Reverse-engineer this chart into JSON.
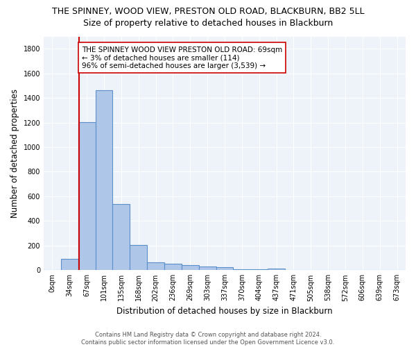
{
  "title": "THE SPINNEY, WOOD VIEW, PRESTON OLD ROAD, BLACKBURN, BB2 5LL",
  "subtitle": "Size of property relative to detached houses in Blackburn",
  "xlabel": "Distribution of detached houses by size in Blackburn",
  "ylabel": "Number of detached properties",
  "footer_line1": "Contains HM Land Registry data © Crown copyright and database right 2024.",
  "footer_line2": "Contains public sector information licensed under the Open Government Licence v3.0.",
  "bin_labels": [
    "0sqm",
    "34sqm",
    "67sqm",
    "101sqm",
    "135sqm",
    "168sqm",
    "202sqm",
    "236sqm",
    "269sqm",
    "303sqm",
    "337sqm",
    "370sqm",
    "404sqm",
    "437sqm",
    "471sqm",
    "505sqm",
    "538sqm",
    "572sqm",
    "606sqm",
    "639sqm",
    "673sqm"
  ],
  "bar_values": [
    0,
    90,
    1205,
    1460,
    540,
    205,
    65,
    50,
    40,
    28,
    25,
    10,
    10,
    15,
    0,
    0,
    0,
    0,
    0,
    0,
    0
  ],
  "bar_color": "#aec6e8",
  "bar_edge_color": "#5b8fc9",
  "property_line_color": "#cc0000",
  "annotation_text": "THE SPINNEY WOOD VIEW PRESTON OLD ROAD: 69sqm\n← 3% of detached houses are smaller (114)\n96% of semi-detached houses are larger (3,539) →",
  "annotation_box_color": "white",
  "annotation_box_edge_color": "#cc0000",
  "ylim": [
    0,
    1900
  ],
  "yticks": [
    0,
    200,
    400,
    600,
    800,
    1000,
    1200,
    1400,
    1600,
    1800
  ],
  "background_color": "#eef3fa",
  "grid_color": "#ffffff",
  "title_fontsize": 9,
  "subtitle_fontsize": 9,
  "axis_label_fontsize": 8.5,
  "tick_fontsize": 7,
  "annotation_fontsize": 7.5,
  "footer_fontsize": 6
}
